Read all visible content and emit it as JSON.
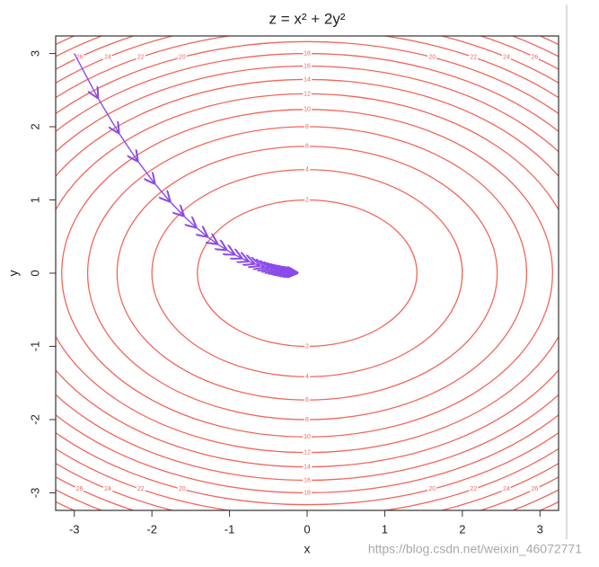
{
  "chart_data": {
    "type": "contour",
    "title": "z = x² + 2y²",
    "x_label": "x",
    "y_label": "y",
    "xlim": [
      -3.24,
      3.24
    ],
    "ylim": [
      -3.24,
      3.24
    ],
    "xticks": [
      -3,
      -2,
      -1,
      0,
      1,
      2,
      3
    ],
    "yticks": [
      -3,
      -2,
      -1,
      0,
      1,
      2,
      3
    ],
    "levels": [
      2,
      4,
      6,
      8,
      10,
      12,
      14,
      16,
      18,
      20,
      22,
      24,
      26,
      28,
      30
    ],
    "contour_color": "#f0665c",
    "path": {
      "color": "#8a4be8",
      "x": [
        -3,
        -2.7,
        -2.43,
        -2.187,
        -1.968,
        -1.771,
        -1.594,
        -1.435,
        -1.291,
        -1.162,
        -1.046,
        -0.941,
        -0.847,
        -0.763,
        -0.686,
        -0.618,
        -0.556,
        -0.5,
        -0.45,
        -0.405,
        -0.365,
        -0.328,
        -0.295,
        -0.266,
        -0.239,
        -0.215,
        -0.194,
        -0.174,
        -0.157,
        -0.141,
        -0.127
      ],
      "y": [
        3,
        2.4,
        1.92,
        1.536,
        1.229,
        0.983,
        0.786,
        0.629,
        0.503,
        0.403,
        0.322,
        0.258,
        0.206,
        0.165,
        0.132,
        0.106,
        0.084,
        0.068,
        0.054,
        0.043,
        0.035,
        0.028,
        0.022,
        0.018,
        0.014,
        0.011,
        0.009,
        0.007,
        0.006,
        0.005,
        0.004
      ]
    },
    "watermark": "https://blog.csdn.net/weixin_46072771"
  }
}
